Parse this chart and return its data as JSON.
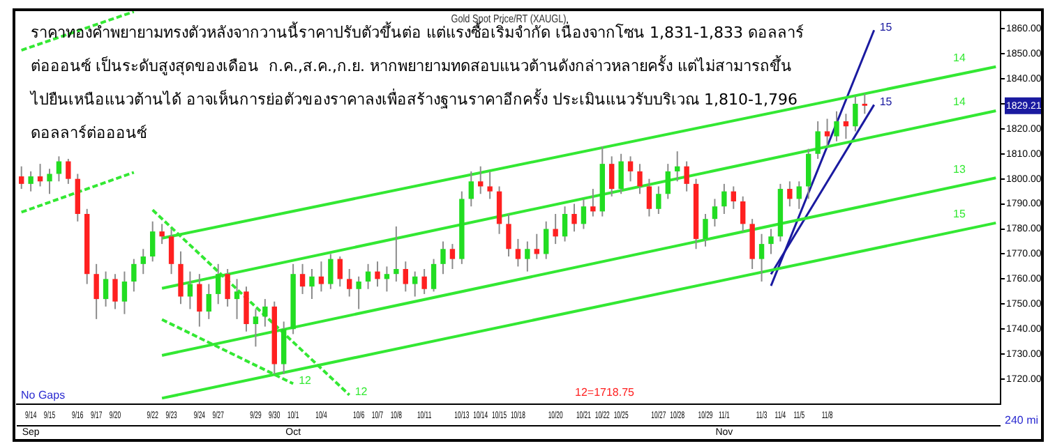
{
  "chart_data": {
    "type": "candlestick",
    "title": "Gold Spot Price/RT (XAUGL)",
    "categories": [
      null,
      "9/14\nSep",
      null,
      "9/15",
      null,
      null,
      "9/16",
      null,
      "9/17",
      null,
      "9/20",
      null,
      null,
      null,
      "9/22",
      null,
      "9/23",
      null,
      null,
      "9/24",
      null,
      "9/27",
      null,
      null,
      null,
      "9/29",
      null,
      "9/30",
      null,
      "10/1\nOct",
      null,
      null,
      "10/4",
      null,
      null,
      null,
      "10/6",
      null,
      "10/7",
      null,
      "10/8",
      null,
      null,
      "10/11",
      null,
      null,
      null,
      "10/13",
      null,
      "10/14",
      null,
      "10/15",
      null,
      "10/18",
      null,
      null,
      null,
      "10/20",
      null,
      null,
      "10/21",
      null,
      "10/22",
      null,
      "10/25",
      null,
      null,
      null,
      "10/27",
      null,
      "10/28",
      null,
      null,
      "10/29",
      null,
      "11/1\nNov",
      null,
      null,
      null,
      "11/3",
      null,
      "11/4",
      null,
      "11/5",
      null,
      null,
      "11/8",
      null,
      null,
      null,
      null,
      null,
      null,
      null,
      null,
      null,
      null,
      null,
      null,
      null,
      null,
      null,
      null,
      null,
      null
    ],
    "ohlc": [
      [
        1801,
        1805,
        1796,
        1798
      ],
      [
        1798,
        1803,
        1795,
        1801
      ],
      [
        1801,
        1806,
        1797,
        1799
      ],
      [
        1799,
        1804,
        1794,
        1802
      ],
      [
        1802,
        1809,
        1799,
        1807
      ],
      [
        1807,
        1808,
        1798,
        1800
      ],
      [
        1800,
        1802,
        1783,
        1786
      ],
      [
        1786,
        1788,
        1758,
        1762
      ],
      [
        1762,
        1766,
        1744,
        1752
      ],
      [
        1752,
        1763,
        1749,
        1760
      ],
      [
        1760,
        1762,
        1748,
        1751
      ],
      [
        1751,
        1763,
        1746,
        1759
      ],
      [
        1759,
        1768,
        1755,
        1766
      ],
      [
        1766,
        1772,
        1762,
        1769
      ],
      [
        1769,
        1783,
        1767,
        1779
      ],
      [
        1779,
        1782,
        1774,
        1777
      ],
      [
        1777,
        1780,
        1762,
        1766
      ],
      [
        1766,
        1771,
        1750,
        1753
      ],
      [
        1753,
        1763,
        1748,
        1758
      ],
      [
        1758,
        1762,
        1741,
        1747
      ],
      [
        1747,
        1758,
        1744,
        1754
      ],
      [
        1754,
        1766,
        1750,
        1762
      ],
      [
        1762,
        1764,
        1749,
        1752
      ],
      [
        1752,
        1760,
        1744,
        1755
      ],
      [
        1755,
        1757,
        1739,
        1742
      ],
      [
        1742,
        1748,
        1733,
        1745
      ],
      [
        1745,
        1752,
        1741,
        1749
      ],
      [
        1749,
        1751,
        1722,
        1726
      ],
      [
        1726,
        1743,
        1722,
        1740
      ],
      [
        1740,
        1766,
        1738,
        1762
      ],
      [
        1762,
        1766,
        1754,
        1757
      ],
      [
        1757,
        1764,
        1752,
        1761
      ],
      [
        1761,
        1767,
        1755,
        1758
      ],
      [
        1758,
        1770,
        1756,
        1768
      ],
      [
        1768,
        1769,
        1757,
        1760
      ],
      [
        1760,
        1764,
        1753,
        1756
      ],
      [
        1756,
        1761,
        1748,
        1759
      ],
      [
        1759,
        1766,
        1756,
        1763
      ],
      [
        1763,
        1767,
        1757,
        1760
      ],
      [
        1760,
        1765,
        1755,
        1762
      ],
      [
        1762,
        1781,
        1759,
        1764
      ],
      [
        1764,
        1767,
        1755,
        1758
      ],
      [
        1758,
        1763,
        1753,
        1761
      ],
      [
        1761,
        1764,
        1754,
        1756
      ],
      [
        1756,
        1768,
        1755,
        1766
      ],
      [
        1766,
        1775,
        1762,
        1772
      ],
      [
        1772,
        1774,
        1764,
        1768
      ],
      [
        1768,
        1795,
        1766,
        1792
      ],
      [
        1792,
        1803,
        1789,
        1799
      ],
      [
        1799,
        1805,
        1794,
        1797
      ],
      [
        1797,
        1803,
        1792,
        1795
      ],
      [
        1795,
        1797,
        1778,
        1782
      ],
      [
        1782,
        1786,
        1769,
        1772
      ],
      [
        1772,
        1776,
        1765,
        1768
      ],
      [
        1768,
        1775,
        1763,
        1772
      ],
      [
        1772,
        1778,
        1768,
        1770
      ],
      [
        1770,
        1783,
        1768,
        1780
      ],
      [
        1780,
        1786,
        1774,
        1777
      ],
      [
        1777,
        1789,
        1775,
        1786
      ],
      [
        1786,
        1790,
        1779,
        1782
      ],
      [
        1782,
        1792,
        1780,
        1789
      ],
      [
        1789,
        1796,
        1785,
        1787
      ],
      [
        1787,
        1813,
        1785,
        1806
      ],
      [
        1806,
        1809,
        1793,
        1796
      ],
      [
        1796,
        1810,
        1794,
        1807
      ],
      [
        1807,
        1809,
        1799,
        1803
      ],
      [
        1803,
        1806,
        1794,
        1797
      ],
      [
        1797,
        1800,
        1785,
        1788
      ],
      [
        1788,
        1797,
        1786,
        1794
      ],
      [
        1794,
        1806,
        1792,
        1803
      ],
      [
        1803,
        1811,
        1799,
        1805
      ],
      [
        1805,
        1807,
        1795,
        1798
      ],
      [
        1798,
        1800,
        1772,
        1776
      ],
      [
        1776,
        1786,
        1773,
        1784
      ],
      [
        1784,
        1792,
        1781,
        1789
      ],
      [
        1789,
        1798,
        1786,
        1795
      ],
      [
        1795,
        1797,
        1788,
        1791
      ],
      [
        1791,
        1793,
        1779,
        1782
      ],
      [
        1782,
        1784,
        1764,
        1768
      ],
      [
        1768,
        1778,
        1759,
        1774
      ],
      [
        1774,
        1780,
        1770,
        1777
      ],
      [
        1777,
        1798,
        1775,
        1796
      ],
      [
        1796,
        1799,
        1789,
        1792
      ],
      [
        1792,
        1799,
        1788,
        1797
      ],
      [
        1797,
        1812,
        1792,
        1810
      ],
      [
        1810,
        1823,
        1808,
        1819
      ],
      [
        1819,
        1824,
        1813,
        1817
      ],
      [
        1817,
        1827,
        1815,
        1823
      ],
      [
        1823,
        1826,
        1816,
        1821
      ],
      [
        1821,
        1833,
        1819,
        1830
      ],
      [
        1830,
        1834,
        1826,
        1829.21
      ],
      null,
      null,
      null,
      null,
      null,
      null,
      null,
      null,
      null,
      null,
      null,
      null,
      null,
      null
    ],
    "series": [
      {
        "type": "line",
        "name": "14",
        "color": "#33e833",
        "line_style": "solid",
        "values": [
          null,
          null,
          null,
          null,
          null,
          null,
          null,
          null,
          null,
          null,
          null,
          null,
          null,
          null,
          null,
          1776.3,
          null,
          null,
          null,
          null,
          null,
          null,
          null,
          null,
          null,
          null,
          null,
          null,
          null,
          null,
          null,
          null,
          null,
          null,
          null,
          null,
          null,
          null,
          null,
          null,
          null,
          null,
          null,
          null,
          null,
          null,
          null,
          null,
          null,
          null,
          null,
          null,
          null,
          null,
          null,
          null,
          null,
          null,
          null,
          null,
          null,
          null,
          null,
          null,
          null,
          null,
          null,
          null,
          null,
          null,
          null,
          null,
          null,
          null,
          null,
          null,
          null,
          null,
          null,
          null,
          null,
          null,
          null,
          null,
          null,
          null,
          null,
          null,
          null,
          null,
          null,
          null,
          null,
          null,
          null,
          null,
          null,
          null,
          null,
          null,
          null,
          null,
          null,
          null,
          1844.8
        ]
      },
      {
        "type": "line",
        "name": "14",
        "color": "#33e833",
        "line_style": "solid",
        "values": [
          null,
          null,
          null,
          null,
          null,
          null,
          null,
          null,
          null,
          null,
          null,
          null,
          null,
          null,
          null,
          1756.3,
          null,
          null,
          null,
          null,
          null,
          null,
          null,
          null,
          null,
          null,
          null,
          null,
          null,
          null,
          null,
          null,
          null,
          null,
          null,
          null,
          null,
          null,
          null,
          null,
          null,
          null,
          null,
          null,
          null,
          null,
          null,
          null,
          null,
          null,
          null,
          null,
          null,
          null,
          null,
          null,
          null,
          null,
          null,
          null,
          null,
          null,
          null,
          null,
          null,
          null,
          null,
          null,
          null,
          null,
          null,
          null,
          null,
          null,
          null,
          null,
          null,
          null,
          null,
          null,
          null,
          null,
          null,
          null,
          null,
          null,
          null,
          null,
          null,
          null,
          null,
          null,
          null,
          null,
          null,
          null,
          null,
          null,
          null,
          null,
          null,
          null,
          null,
          null,
          1827.2
        ]
      },
      {
        "type": "line",
        "name": "13",
        "color": "#33e833",
        "line_style": "solid",
        "values": [
          null,
          null,
          null,
          null,
          null,
          null,
          null,
          null,
          null,
          null,
          null,
          null,
          null,
          null,
          null,
          1729.5,
          null,
          null,
          null,
          null,
          null,
          null,
          null,
          null,
          null,
          null,
          null,
          null,
          null,
          null,
          null,
          null,
          null,
          null,
          null,
          null,
          null,
          null,
          null,
          null,
          null,
          null,
          null,
          null,
          null,
          null,
          null,
          null,
          null,
          null,
          null,
          null,
          null,
          null,
          null,
          null,
          null,
          null,
          null,
          null,
          null,
          null,
          null,
          null,
          null,
          null,
          null,
          null,
          null,
          null,
          null,
          null,
          null,
          null,
          null,
          null,
          null,
          null,
          null,
          null,
          null,
          null,
          null,
          null,
          null,
          null,
          null,
          null,
          null,
          null,
          null,
          null,
          null,
          null,
          null,
          null,
          null,
          null,
          null,
          null,
          null,
          null,
          null,
          null,
          1800.4
        ]
      },
      {
        "type": "line",
        "name": "15",
        "color": "#33e833",
        "line_style": "solid",
        "values": [
          null,
          null,
          null,
          null,
          null,
          null,
          null,
          null,
          null,
          null,
          null,
          null,
          null,
          null,
          null,
          1712.4,
          null,
          null,
          null,
          null,
          null,
          null,
          null,
          null,
          null,
          null,
          null,
          null,
          null,
          null,
          null,
          null,
          null,
          null,
          null,
          null,
          null,
          null,
          null,
          null,
          null,
          null,
          null,
          null,
          null,
          null,
          null,
          null,
          null,
          null,
          null,
          null,
          null,
          null,
          null,
          null,
          null,
          null,
          null,
          null,
          null,
          null,
          null,
          null,
          null,
          null,
          null,
          null,
          null,
          null,
          null,
          null,
          null,
          null,
          null,
          null,
          null,
          null,
          null,
          null,
          null,
          null,
          null,
          null,
          null,
          null,
          null,
          null,
          null,
          null,
          null,
          null,
          null,
          null,
          null,
          null,
          null,
          null,
          null,
          null,
          null,
          null,
          null,
          null,
          1782.4
        ]
      },
      {
        "type": "line",
        "name": "12",
        "color": "#33e833",
        "line_style": "dashed",
        "values": [
          null,
          null,
          null,
          null,
          null,
          null,
          null,
          null,
          null,
          null,
          null,
          null,
          null,
          null,
          1787.6,
          null,
          null,
          null,
          null,
          null,
          null,
          null,
          null,
          null,
          null,
          null,
          null,
          null,
          null,
          null,
          null,
          null,
          null,
          null,
          null,
          1713.7,
          null,
          null,
          null,
          null,
          null,
          null,
          null,
          null,
          null,
          null,
          null,
          null,
          null,
          null,
          null,
          null,
          null,
          null,
          null,
          null,
          null,
          null,
          null,
          null,
          null,
          null,
          null,
          null,
          null,
          null,
          null,
          null,
          null,
          null,
          null,
          null,
          null,
          null,
          null,
          null,
          null,
          null,
          null,
          null,
          null,
          null,
          null,
          null,
          null,
          null,
          null,
          null,
          null,
          null,
          null,
          null,
          null,
          null,
          null,
          null,
          null,
          null,
          null,
          null,
          null,
          null,
          null,
          null,
          null
        ]
      },
      {
        "type": "line",
        "name": "12",
        "color": "#33e833",
        "line_style": "dashed",
        "values": [
          null,
          null,
          null,
          null,
          null,
          null,
          null,
          null,
          null,
          null,
          null,
          null,
          null,
          null,
          null,
          1743.8,
          null,
          null,
          null,
          null,
          null,
          null,
          null,
          null,
          null,
          null,
          null,
          null,
          null,
          1718.2,
          null,
          null,
          null,
          null,
          null,
          null,
          null,
          null,
          null,
          null,
          null,
          null,
          null,
          null,
          null,
          null,
          null,
          null,
          null,
          null,
          null,
          null,
          null,
          null,
          null,
          null,
          null,
          null,
          null,
          null,
          null,
          null,
          null,
          null,
          null,
          null,
          null,
          null,
          null,
          null,
          null,
          null,
          null,
          null,
          null,
          null,
          null,
          null,
          null,
          null,
          null,
          null,
          null,
          null,
          null,
          null,
          null,
          null,
          null,
          null,
          null,
          null,
          null,
          null,
          null,
          null,
          null,
          null,
          null,
          null,
          null,
          null,
          null,
          null,
          null
        ]
      },
      {
        "type": "line",
        "color": "#33e833",
        "line_style": "dashed",
        "values": [
          1851.4,
          null,
          null,
          null,
          null,
          null,
          null,
          null,
          null,
          null,
          null,
          null,
          1866.8,
          null,
          null,
          null,
          null,
          null,
          null,
          null,
          null,
          null,
          null,
          null,
          null,
          null,
          null,
          null,
          null,
          null,
          null,
          null,
          null,
          null,
          null,
          null,
          null,
          null,
          null,
          null,
          null,
          null,
          null,
          null,
          null,
          null,
          null,
          null,
          null,
          null,
          null,
          null,
          null,
          null,
          null,
          null,
          null,
          null,
          null,
          null,
          null,
          null,
          null,
          null,
          null,
          null,
          null,
          null,
          null,
          null,
          null,
          null,
          null,
          null,
          null,
          null,
          null,
          null,
          null,
          null,
          null,
          null,
          null,
          null,
          null,
          null,
          null,
          null,
          null,
          null,
          null,
          null,
          null,
          null,
          null,
          null,
          null,
          null,
          null,
          null,
          null,
          null,
          null,
          null,
          null
        ]
      },
      {
        "type": "line",
        "color": "#33e833",
        "line_style": "dashed",
        "values": [
          1786.7,
          null,
          null,
          null,
          null,
          null,
          null,
          null,
          null,
          null,
          null,
          null,
          1802.6,
          null,
          null,
          null,
          null,
          null,
          null,
          null,
          null,
          null,
          null,
          null,
          null,
          null,
          null,
          null,
          null,
          null,
          null,
          null,
          null,
          null,
          null,
          null,
          null,
          null,
          null,
          null,
          null,
          null,
          null,
          null,
          null,
          null,
          null,
          null,
          null,
          null,
          null,
          null,
          null,
          null,
          null,
          null,
          null,
          null,
          null,
          null,
          null,
          null,
          null,
          null,
          null,
          null,
          null,
          null,
          null,
          null,
          null,
          null,
          null,
          null,
          null,
          null,
          null,
          null,
          null,
          null,
          null,
          null,
          null,
          null,
          null,
          null,
          null,
          null,
          null,
          null,
          null,
          null,
          null,
          null,
          null,
          null,
          null,
          null,
          null,
          null,
          null,
          null,
          null,
          null,
          null
        ]
      },
      {
        "type": "line",
        "name": "15",
        "color": "#1a1aa0",
        "line_style": "solid",
        "values": [
          null,
          null,
          null,
          null,
          null,
          null,
          null,
          null,
          null,
          null,
          null,
          null,
          null,
          null,
          null,
          null,
          null,
          null,
          null,
          null,
          null,
          null,
          null,
          null,
          null,
          null,
          null,
          null,
          null,
          null,
          null,
          null,
          null,
          null,
          null,
          null,
          null,
          null,
          null,
          null,
          null,
          null,
          null,
          null,
          null,
          null,
          null,
          null,
          null,
          null,
          null,
          null,
          null,
          null,
          null,
          null,
          null,
          null,
          null,
          null,
          null,
          null,
          null,
          null,
          null,
          null,
          null,
          null,
          null,
          null,
          null,
          null,
          null,
          null,
          null,
          null,
          null,
          null,
          null,
          null,
          1757.3,
          null,
          null,
          null,
          null,
          null,
          null,
          null,
          null,
          null,
          null,
          1859.4,
          null,
          null,
          null,
          null,
          null,
          null,
          null,
          null,
          null,
          null,
          null,
          null,
          null
        ]
      },
      {
        "type": "line",
        "name": "15",
        "color": "#1a1aa0",
        "line_style": "solid",
        "values": [
          null,
          null,
          null,
          null,
          null,
          null,
          null,
          null,
          null,
          null,
          null,
          null,
          null,
          null,
          null,
          null,
          null,
          null,
          null,
          null,
          null,
          null,
          null,
          null,
          null,
          null,
          null,
          null,
          null,
          null,
          null,
          null,
          null,
          null,
          null,
          null,
          null,
          null,
          null,
          null,
          null,
          null,
          null,
          null,
          null,
          null,
          null,
          null,
          null,
          null,
          null,
          null,
          null,
          null,
          null,
          null,
          null,
          null,
          null,
          null,
          null,
          null,
          null,
          null,
          null,
          null,
          null,
          null,
          null,
          null,
          null,
          null,
          null,
          null,
          null,
          null,
          null,
          null,
          null,
          null,
          1761.9,
          null,
          null,
          null,
          null,
          null,
          null,
          null,
          null,
          null,
          null,
          1829.6,
          null,
          null,
          null,
          null,
          null,
          null,
          null,
          null,
          null,
          null,
          null,
          null,
          null
        ]
      }
    ],
    "ylim": [
      1710,
      1867
    ],
    "yticks": [
      {
        "value": 1720,
        "label": "1720.00"
      },
      {
        "value": 1730,
        "label": "1730.00"
      },
      {
        "value": 1740,
        "label": "1740.00"
      },
      {
        "value": 1750,
        "label": "1750.00"
      },
      {
        "value": 1760,
        "label": "1760.00"
      },
      {
        "value": 1770,
        "label": "1770.00"
      },
      {
        "value": 1780,
        "label": "1780.00"
      },
      {
        "value": 1790,
        "label": "1790.00"
      },
      {
        "value": 1800,
        "label": "1800.00"
      },
      {
        "value": 1810,
        "label": "1810.00"
      },
      {
        "value": 1820,
        "label": "1820.00"
      },
      {
        "value": 1830,
        "label": null
      },
      {
        "value": 1840,
        "label": "1840.00"
      },
      {
        "value": 1850,
        "label": "1850.00"
      },
      {
        "value": 1860,
        "label": "1860.00"
      }
    ],
    "annotations": [
      "ราคาทองคำพยายามทรงตัวหลังจากวานนี้ราคาปรับตัวขึ้นต่อ แต่แรงซื้อเริ่มจำกัด เนื่องจากโซน 1,831-1,833 ดอลลาร์",
      "ต่อออนซ์ เป็นระดับสูงสุดของเดือน  ก.ค.,ส.ค.,ก.ย. หากพยายามทดสอบแนวต้านดังกล่าวหลายครั้ง แต่ไม่สามารถขึ้น",
      "ไปยืนเหนือแนวต้านได้ อาจเห็นการย่อตัวของราคาลงเพื่อสร้างฐานราคาอีกครั้ง ประเมินแนวรับบริเวณ 1,810-1,796",
      "ดอลลาร์ต่อออนซ์",
      "No Gaps",
      "12=1718.75",
      "240 mi",
      "1829.21"
    ],
    "legend": false
  }
}
